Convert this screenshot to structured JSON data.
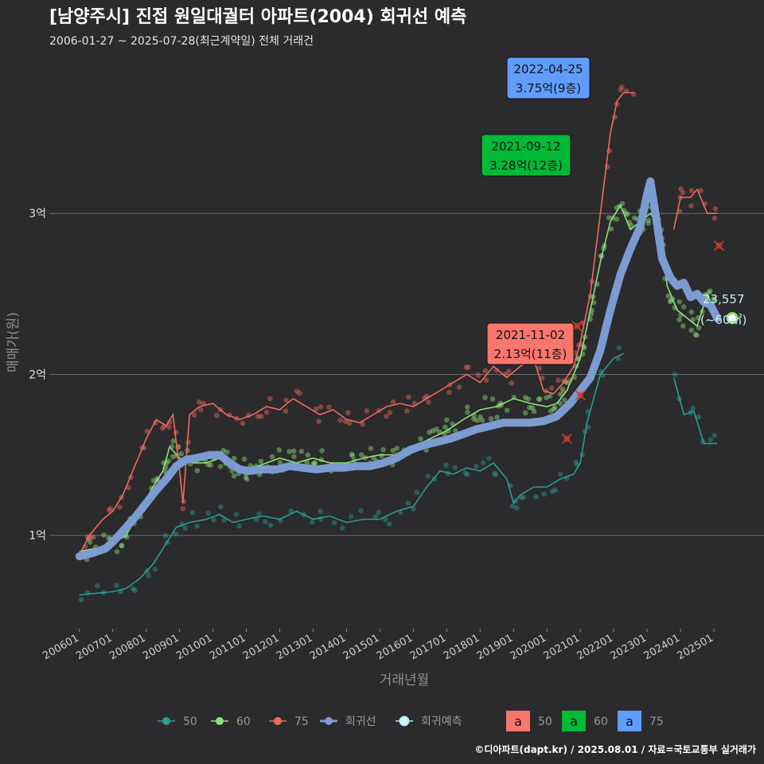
{
  "title": "[남양주시] 진접 원일대궐터 아파트(2004) 회귀선 예측",
  "subtitle": "2006-01-27 ~ 2025-07-28(최근계약일) 전체 거래건",
  "caption": "©디아파트(dapt.kr) / 2025.08.01 / 자료=국토교통부 실거래가",
  "colors": {
    "background": "#2b2a2c",
    "grid": "#6e6e6e",
    "s50": "#2a9d94",
    "s60": "#8fe07a",
    "s75": "#f06a62",
    "regression": "#7b9bd1",
    "forecast": "#b8f0f5",
    "box50": "#f8766d",
    "box60": "#00ba38",
    "box75": "#619cff"
  },
  "chart_data": {
    "type": "line",
    "xlabel": "거래년월",
    "ylabel": "매매가(원)",
    "x_unit": "year (decimal)",
    "y_unit": "억원",
    "xlim": [
      2005.1,
      2026.5
    ],
    "ylim": [
      0.42,
      3.98
    ],
    "x_ticks": [
      {
        "x": 2006.0,
        "label": "200601"
      },
      {
        "x": 2007.0,
        "label": "200701"
      },
      {
        "x": 2008.0,
        "label": "200801"
      },
      {
        "x": 2009.0,
        "label": "200901"
      },
      {
        "x": 2010.0,
        "label": "201001"
      },
      {
        "x": 2011.0,
        "label": "201101"
      },
      {
        "x": 2012.0,
        "label": "201201"
      },
      {
        "x": 2013.0,
        "label": "201301"
      },
      {
        "x": 2014.0,
        "label": "201401"
      },
      {
        "x": 2015.0,
        "label": "201501"
      },
      {
        "x": 2016.0,
        "label": "201601"
      },
      {
        "x": 2017.0,
        "label": "201701"
      },
      {
        "x": 2018.0,
        "label": "201801"
      },
      {
        "x": 2019.0,
        "label": "201901"
      },
      {
        "x": 2020.0,
        "label": "202001"
      },
      {
        "x": 2021.0,
        "label": "202101"
      },
      {
        "x": 2022.0,
        "label": "202201"
      },
      {
        "x": 2023.0,
        "label": "202301"
      },
      {
        "x": 2024.0,
        "label": "202401"
      },
      {
        "x": 2025.0,
        "label": "202501"
      }
    ],
    "y_ticks": [
      {
        "y": 1,
        "label": "1억"
      },
      {
        "y": 2,
        "label": "2억"
      },
      {
        "y": 3,
        "label": "3억"
      }
    ],
    "series": [
      {
        "name": "50",
        "key": "s50",
        "points": [
          [
            2006.0,
            0.63
          ],
          [
            2006.5,
            0.64
          ],
          [
            2007.0,
            0.65
          ],
          [
            2007.4,
            0.67
          ],
          [
            2007.8,
            0.73
          ],
          [
            2008.2,
            0.82
          ],
          [
            2008.6,
            0.95
          ],
          [
            2008.9,
            1.05
          ],
          [
            2009.3,
            1.08
          ],
          [
            2009.8,
            1.1
          ],
          [
            2010.2,
            1.13
          ],
          [
            2010.6,
            1.08
          ],
          [
            2011.0,
            1.1
          ],
          [
            2011.5,
            1.12
          ],
          [
            2012.0,
            1.1
          ],
          [
            2012.5,
            1.15
          ],
          [
            2013.0,
            1.1
          ],
          [
            2013.5,
            1.12
          ],
          [
            2014.0,
            1.08
          ],
          [
            2014.5,
            1.1
          ],
          [
            2015.0,
            1.1
          ],
          [
            2015.5,
            1.15
          ],
          [
            2016.0,
            1.18
          ],
          [
            2016.4,
            1.3
          ],
          [
            2016.8,
            1.4
          ],
          [
            2017.2,
            1.38
          ],
          [
            2017.6,
            1.42
          ],
          [
            2018.0,
            1.4
          ],
          [
            2018.4,
            1.45
          ],
          [
            2018.8,
            1.35
          ],
          [
            2019.0,
            1.2
          ],
          [
            2019.2,
            1.25
          ],
          [
            2019.6,
            1.3
          ],
          [
            2020.0,
            1.3
          ],
          [
            2020.4,
            1.35
          ],
          [
            2020.8,
            1.38
          ],
          [
            2021.0,
            1.45
          ],
          [
            2021.2,
            1.7
          ],
          [
            2021.6,
            2.0
          ],
          [
            2022.0,
            2.1
          ],
          [
            2022.3,
            2.13
          ]
        ],
        "gaps_after": [
          2022.3
        ],
        "points2": [
          [
            2023.8,
            1.98
          ],
          [
            2024.1,
            1.75
          ],
          [
            2024.4,
            1.77
          ],
          [
            2024.7,
            1.57
          ],
          [
            2025.1,
            1.57
          ]
        ]
      },
      {
        "name": "60",
        "key": "s60",
        "points": [
          [
            2006.0,
            0.9
          ],
          [
            2006.5,
            0.92
          ],
          [
            2007.0,
            0.95
          ],
          [
            2007.4,
            1.0
          ],
          [
            2007.8,
            1.15
          ],
          [
            2008.2,
            1.3
          ],
          [
            2008.5,
            1.4
          ],
          [
            2008.7,
            1.55
          ],
          [
            2009.0,
            1.48
          ],
          [
            2009.4,
            1.45
          ],
          [
            2009.8,
            1.45
          ],
          [
            2010.2,
            1.48
          ],
          [
            2010.5,
            1.45
          ],
          [
            2010.8,
            1.4
          ],
          [
            2011.2,
            1.42
          ],
          [
            2011.6,
            1.45
          ],
          [
            2012.0,
            1.48
          ],
          [
            2012.5,
            1.45
          ],
          [
            2013.0,
            1.48
          ],
          [
            2013.5,
            1.45
          ],
          [
            2014.0,
            1.45
          ],
          [
            2014.5,
            1.48
          ],
          [
            2015.0,
            1.5
          ],
          [
            2015.5,
            1.5
          ],
          [
            2016.0,
            1.55
          ],
          [
            2016.5,
            1.6
          ],
          [
            2017.0,
            1.65
          ],
          [
            2017.5,
            1.72
          ],
          [
            2018.0,
            1.78
          ],
          [
            2018.5,
            1.8
          ],
          [
            2019.0,
            1.85
          ],
          [
            2019.5,
            1.82
          ],
          [
            2020.0,
            1.8
          ],
          [
            2020.3,
            1.82
          ],
          [
            2020.6,
            1.9
          ],
          [
            2021.0,
            2.1
          ],
          [
            2021.3,
            2.4
          ],
          [
            2021.6,
            2.7
          ],
          [
            2021.9,
            2.95
          ],
          [
            2022.2,
            3.05
          ],
          [
            2022.5,
            2.9
          ],
          [
            2022.8,
            2.95
          ],
          [
            2023.1,
            3.0
          ],
          [
            2023.4,
            2.9
          ],
          [
            2023.6,
            2.55
          ],
          [
            2023.9,
            2.4
          ],
          [
            2024.2,
            2.35
          ],
          [
            2024.5,
            2.3
          ],
          [
            2024.8,
            2.5
          ],
          [
            2025.1,
            2.35
          ]
        ]
      },
      {
        "name": "75",
        "key": "s75",
        "points": [
          [
            2006.0,
            0.88
          ],
          [
            2006.3,
            1.0
          ],
          [
            2006.7,
            1.1
          ],
          [
            2007.0,
            1.15
          ],
          [
            2007.3,
            1.25
          ],
          [
            2007.6,
            1.4
          ],
          [
            2008.0,
            1.6
          ],
          [
            2008.3,
            1.72
          ],
          [
            2008.6,
            1.68
          ],
          [
            2008.8,
            1.75
          ],
          [
            2009.0,
            1.4
          ],
          [
            2009.1,
            1.2
          ],
          [
            2009.3,
            1.75
          ],
          [
            2009.6,
            1.8
          ],
          [
            2010.0,
            1.82
          ],
          [
            2010.4,
            1.75
          ],
          [
            2010.8,
            1.72
          ],
          [
            2011.2,
            1.75
          ],
          [
            2011.6,
            1.8
          ],
          [
            2012.0,
            1.78
          ],
          [
            2012.4,
            1.85
          ],
          [
            2012.8,
            1.8
          ],
          [
            2013.2,
            1.75
          ],
          [
            2013.6,
            1.78
          ],
          [
            2014.0,
            1.72
          ],
          [
            2014.4,
            1.7
          ],
          [
            2014.8,
            1.75
          ],
          [
            2015.2,
            1.8
          ],
          [
            2015.6,
            1.82
          ],
          [
            2016.0,
            1.8
          ],
          [
            2016.4,
            1.85
          ],
          [
            2016.8,
            1.9
          ],
          [
            2017.2,
            1.95
          ],
          [
            2017.6,
            2.0
          ],
          [
            2018.0,
            1.95
          ],
          [
            2018.4,
            2.05
          ],
          [
            2018.8,
            1.98
          ],
          [
            2019.2,
            2.05
          ],
          [
            2019.6,
            2.1
          ],
          [
            2019.9,
            1.9
          ],
          [
            2020.2,
            1.88
          ],
          [
            2020.5,
            1.95
          ],
          [
            2020.8,
            2.05
          ],
          [
            2021.0,
            2.2
          ],
          [
            2021.3,
            2.5
          ],
          [
            2021.6,
            3.0
          ],
          [
            2021.9,
            3.5
          ],
          [
            2022.1,
            3.7
          ],
          [
            2022.3,
            3.75
          ],
          [
            2022.6,
            3.75
          ]
        ],
        "points2": [
          [
            2023.8,
            2.9
          ],
          [
            2024.0,
            3.1
          ],
          [
            2024.3,
            3.1
          ],
          [
            2024.5,
            3.15
          ],
          [
            2024.8,
            3.0
          ],
          [
            2025.1,
            3.0
          ]
        ]
      },
      {
        "name": "회귀선",
        "key": "regression",
        "points": [
          [
            2006.0,
            0.87
          ],
          [
            2006.4,
            0.89
          ],
          [
            2006.8,
            0.92
          ],
          [
            2007.1,
            0.98
          ],
          [
            2007.4,
            1.05
          ],
          [
            2007.7,
            1.12
          ],
          [
            2008.0,
            1.2
          ],
          [
            2008.3,
            1.28
          ],
          [
            2008.6,
            1.35
          ],
          [
            2008.9,
            1.43
          ],
          [
            2009.2,
            1.47
          ],
          [
            2009.5,
            1.48
          ],
          [
            2009.9,
            1.5
          ],
          [
            2010.2,
            1.5
          ],
          [
            2010.5,
            1.45
          ],
          [
            2010.8,
            1.41
          ],
          [
            2011.1,
            1.4
          ],
          [
            2011.5,
            1.41
          ],
          [
            2011.9,
            1.41
          ],
          [
            2012.3,
            1.43
          ],
          [
            2012.7,
            1.42
          ],
          [
            2013.1,
            1.41
          ],
          [
            2013.5,
            1.42
          ],
          [
            2013.9,
            1.42
          ],
          [
            2014.3,
            1.43
          ],
          [
            2014.7,
            1.43
          ],
          [
            2015.1,
            1.45
          ],
          [
            2015.5,
            1.48
          ],
          [
            2015.9,
            1.53
          ],
          [
            2016.3,
            1.56
          ],
          [
            2016.7,
            1.58
          ],
          [
            2017.1,
            1.6
          ],
          [
            2017.5,
            1.63
          ],
          [
            2017.9,
            1.66
          ],
          [
            2018.3,
            1.68
          ],
          [
            2018.7,
            1.7
          ],
          [
            2019.1,
            1.7
          ],
          [
            2019.5,
            1.7
          ],
          [
            2019.9,
            1.71
          ],
          [
            2020.3,
            1.74
          ],
          [
            2020.7,
            1.82
          ],
          [
            2021.0,
            1.9
          ],
          [
            2021.3,
            1.98
          ],
          [
            2021.6,
            2.15
          ],
          [
            2021.9,
            2.4
          ],
          [
            2022.2,
            2.62
          ],
          [
            2022.5,
            2.78
          ],
          [
            2022.8,
            2.92
          ],
          [
            2023.0,
            3.12
          ],
          [
            2023.1,
            3.2
          ],
          [
            2023.25,
            3.0
          ],
          [
            2023.45,
            2.72
          ],
          [
            2023.7,
            2.6
          ],
          [
            2023.9,
            2.55
          ],
          [
            2024.1,
            2.57
          ],
          [
            2024.3,
            2.48
          ],
          [
            2024.5,
            2.5
          ],
          [
            2024.7,
            2.45
          ],
          [
            2024.9,
            2.43
          ],
          [
            2025.1,
            2.35
          ]
        ]
      }
    ],
    "forecast": {
      "name": "회귀예측",
      "x": 2025.55,
      "y": 2.35,
      "label": "23,557",
      "sublabel": "(~60㎡)"
    },
    "callouts": [
      {
        "date": "2022-04-25",
        "text": "3.75억(9층)",
        "box": "box75",
        "x": 2022.31,
        "y": 3.75
      },
      {
        "date": "2021-09-12",
        "text": "3.28억(12층)",
        "box": "box60",
        "x": 2021.7,
        "y": 3.28
      },
      {
        "date": "2021-11-02",
        "text": "2.13억(11층)",
        "box": "box50",
        "x": 2021.84,
        "y": 2.13
      }
    ],
    "cancelled_marks": [
      {
        "x": 2020.6,
        "y": 1.6
      },
      {
        "x": 2020.9,
        "y": 2.3
      },
      {
        "x": 2025.15,
        "y": 2.8
      },
      {
        "x": 2021.0,
        "y": 1.87
      }
    ],
    "legend": {
      "position": "bottom",
      "lines": [
        {
          "label": "50",
          "key": "s50"
        },
        {
          "label": "60",
          "key": "s60"
        },
        {
          "label": "75",
          "key": "s75"
        },
        {
          "label": "회귀선",
          "key": "regression"
        },
        {
          "label": "회귀예측",
          "key": "forecast"
        }
      ],
      "boxes": [
        {
          "glyph": "a",
          "label": "50",
          "key": "box50"
        },
        {
          "glyph": "a",
          "label": "60",
          "key": "box60"
        },
        {
          "glyph": "a",
          "label": "75",
          "key": "box75"
        }
      ]
    }
  }
}
